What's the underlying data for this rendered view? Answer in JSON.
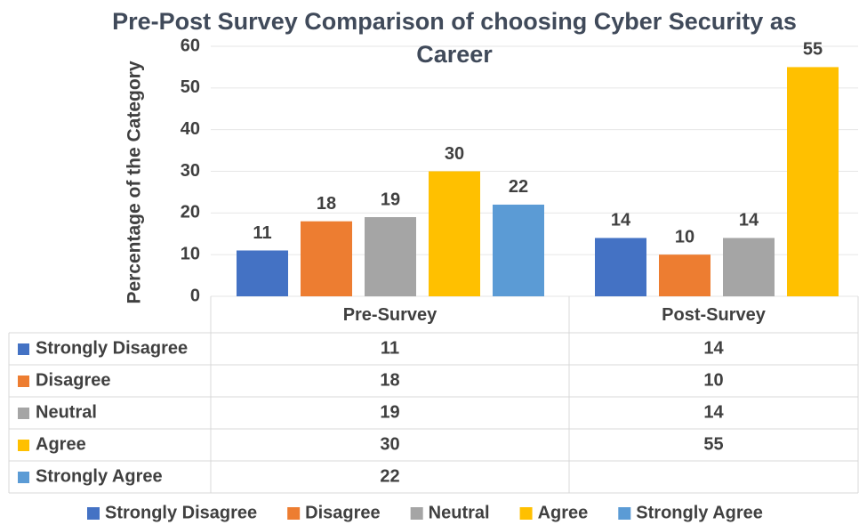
{
  "chart_data": {
    "type": "bar",
    "title": "Pre-Post Survey Comparison of choosing Cyber Security as Career",
    "y_label": "Percentage of the Category",
    "categories": [
      "Pre-Survey",
      "Post-Survey"
    ],
    "series": [
      {
        "name": "Strongly Disagree",
        "color": "#4472c4",
        "values": [
          11,
          14
        ]
      },
      {
        "name": "Disagree",
        "color": "#ed7d31",
        "values": [
          18,
          10
        ]
      },
      {
        "name": "Neutral",
        "color": "#a5a5a5",
        "values": [
          19,
          14
        ]
      },
      {
        "name": "Agree",
        "color": "#ffc000",
        "values": [
          30,
          55
        ]
      },
      {
        "name": "Strongly Agree",
        "color": "#5b9bd5",
        "values": [
          22,
          null
        ]
      }
    ],
    "ylim": [
      0,
      60
    ],
    "yticks": [
      0,
      10,
      20,
      30,
      40,
      50,
      60
    ],
    "grid": true,
    "data_labels": true,
    "data_table": true,
    "legend": "bottom"
  }
}
